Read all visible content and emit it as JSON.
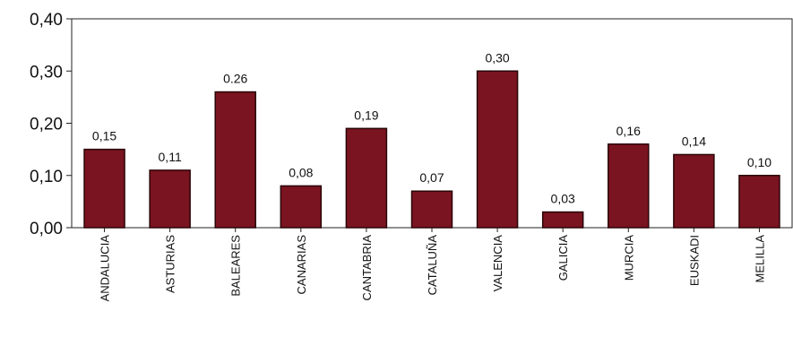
{
  "chart_data": {
    "type": "bar",
    "title": "",
    "xlabel": "",
    "ylabel": "",
    "categories": [
      "ANDALUCIA",
      "ASTURIAS",
      "BALEARES",
      "CANARIAS",
      "CANTABRIA",
      "CATALUÑA",
      "VALENCIA",
      "GALICIA",
      "MURCIA",
      "EUSKADI",
      "MELILLA"
    ],
    "values": [
      0.15,
      0.11,
      0.26,
      0.08,
      0.19,
      0.07,
      0.3,
      0.03,
      0.16,
      0.14,
      0.1
    ],
    "data_labels": [
      "0,15",
      "0,11",
      "0.26",
      "0,08",
      "0,19",
      "0,07",
      "0,30",
      "0,03",
      "0,16",
      "0,14",
      "0,10"
    ],
    "y_ticks": [
      0,
      0.1,
      0.2,
      0.3,
      0.4
    ],
    "y_tick_labels": [
      "0,00",
      "0,10",
      "0,20",
      "0,30",
      "0,40"
    ],
    "ylim": [
      0,
      0.4
    ],
    "grid": false,
    "legend": "none",
    "bar_color": "#7a1420",
    "bar_edge_color": "#2a0508"
  }
}
